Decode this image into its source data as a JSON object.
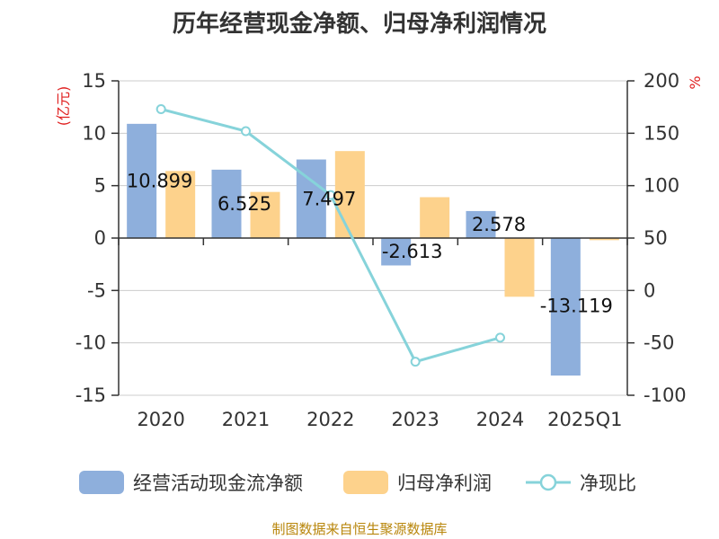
{
  "title": "历年经营现金净额、归母净利润情况",
  "footer": "制图数据来自恒生聚源数据库",
  "colors": {
    "bar_cash": "#8eafdc",
    "bar_profit": "#fdd28c",
    "line_ratio": "#86d3da",
    "unit_text": "#e02020",
    "axis": "#333333",
    "grid": "#cccccc"
  },
  "chart_data": {
    "type": "bar",
    "title": "历年经营现金净额、归母净利润情况",
    "categories": [
      "2020",
      "2021",
      "2022",
      "2023",
      "2024",
      "2025Q1"
    ],
    "left_axis": {
      "unit": "(亿元)",
      "ylim": [
        -15,
        15
      ],
      "ticks": [
        "15",
        "10",
        "5",
        "0",
        "-5",
        "-10",
        "-15"
      ]
    },
    "right_axis": {
      "unit": "%",
      "ylim": [
        -100,
        200
      ],
      "ticks": [
        "200",
        "150",
        "100",
        "50",
        "0",
        "-50",
        "-100"
      ]
    },
    "grid": true,
    "legend_position": "bottom",
    "series": [
      {
        "name": "经营活动现金流净额",
        "kind": "bar",
        "axis": "left",
        "values": [
          10.899,
          6.525,
          7.497,
          -2.613,
          2.578,
          -13.119
        ],
        "labels": [
          "10.899",
          "6.525",
          "7.497",
          "-2.613",
          "2.578",
          "-13.119"
        ]
      },
      {
        "name": "归母净利润",
        "kind": "bar",
        "axis": "left",
        "values": [
          6.4,
          4.4,
          8.3,
          3.9,
          -5.6,
          -0.2
        ]
      },
      {
        "name": "净现比",
        "kind": "line",
        "axis": "right",
        "values": [
          173,
          152,
          91,
          -68,
          -45,
          null
        ]
      }
    ]
  }
}
